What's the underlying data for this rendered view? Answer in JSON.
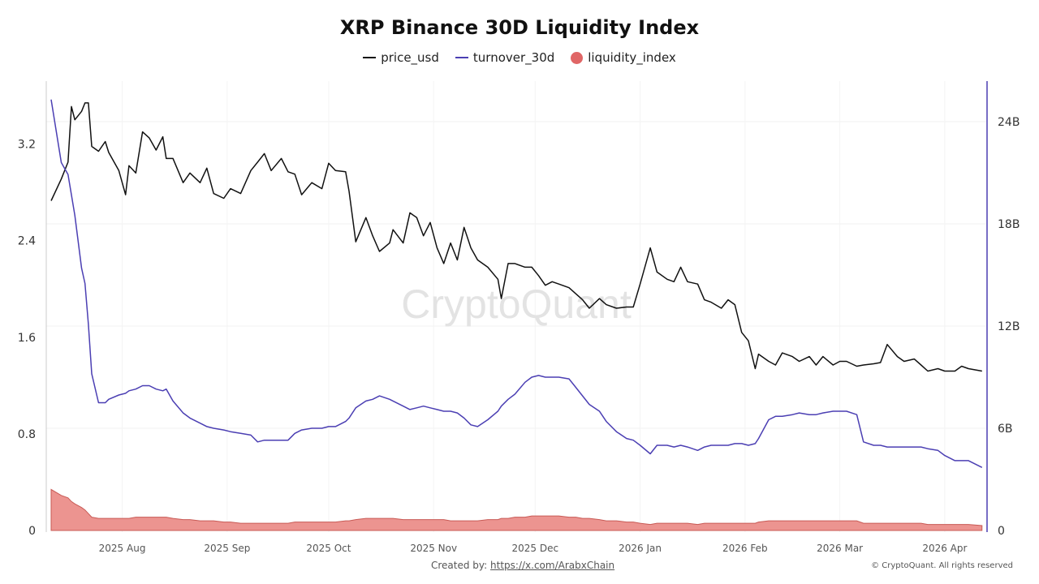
{
  "chart_data": {
    "type": "line",
    "title": "XRP Binance 30D Liquidity Index",
    "legend_position": "top",
    "grid": true,
    "colors": {
      "price_usd": "#111111",
      "turnover_30d": "#4b3fb3",
      "liquidity_index": "#e06666"
    },
    "left_axis": {
      "ticks": [
        "0",
        "0.8",
        "1.6",
        "2.4",
        "3.2"
      ],
      "tick_values": [
        0,
        0.8,
        1.6,
        2.4,
        3.2
      ],
      "ylim": [
        0,
        3.72
      ]
    },
    "right_axis": {
      "ticks": [
        "0",
        "6B",
        "12B",
        "18B",
        "24B"
      ],
      "tick_values": [
        0,
        6,
        12,
        18,
        24
      ],
      "ylim": [
        0,
        26.5
      ],
      "unit": "billions"
    },
    "x_ticks": [
      {
        "label": "2025 Aug",
        "date": "2025-08-01"
      },
      {
        "label": "2025 Sep",
        "date": "2025-09-01"
      },
      {
        "label": "2025 Oct",
        "date": "2025-10-01"
      },
      {
        "label": "2025 Nov",
        "date": "2025-11-01"
      },
      {
        "label": "2025 Dec",
        "date": "2025-12-01"
      },
      {
        "label": "2026 Jan",
        "date": "2026-01-01"
      },
      {
        "label": "2026 Feb",
        "date": "2026-02-01"
      },
      {
        "label": "2026 Mar",
        "date": "2026-03-01"
      },
      {
        "label": "2026 Apr",
        "date": "2026-04-01"
      }
    ],
    "dates": [
      "2025-07-11",
      "2025-07-14",
      "2025-07-16",
      "2025-07-17",
      "2025-07-18",
      "2025-07-20",
      "2025-07-21",
      "2025-07-22",
      "2025-07-23",
      "2025-07-25",
      "2025-07-27",
      "2025-07-28",
      "2025-07-31",
      "2025-08-02",
      "2025-08-03",
      "2025-08-05",
      "2025-08-07",
      "2025-08-09",
      "2025-08-11",
      "2025-08-13",
      "2025-08-14",
      "2025-08-16",
      "2025-08-19",
      "2025-08-21",
      "2025-08-24",
      "2025-08-26",
      "2025-08-28",
      "2025-08-31",
      "2025-09-02",
      "2025-09-05",
      "2025-09-08",
      "2025-09-10",
      "2025-09-12",
      "2025-09-14",
      "2025-09-17",
      "2025-09-19",
      "2025-09-21",
      "2025-09-23",
      "2025-09-26",
      "2025-09-29",
      "2025-10-01",
      "2025-10-03",
      "2025-10-06",
      "2025-10-07",
      "2025-10-09",
      "2025-10-12",
      "2025-10-14",
      "2025-10-16",
      "2025-10-19",
      "2025-10-20",
      "2025-10-23",
      "2025-10-25",
      "2025-10-27",
      "2025-10-29",
      "2025-10-31",
      "2025-11-02",
      "2025-11-04",
      "2025-11-06",
      "2025-11-08",
      "2025-11-10",
      "2025-11-12",
      "2025-11-14",
      "2025-11-17",
      "2025-11-20",
      "2025-11-21",
      "2025-11-23",
      "2025-11-25",
      "2025-11-28",
      "2025-11-30",
      "2025-12-02",
      "2025-12-04",
      "2025-12-06",
      "2025-12-08",
      "2025-12-11",
      "2025-12-13",
      "2025-12-15",
      "2025-12-17",
      "2025-12-20",
      "2025-12-22",
      "2025-12-25",
      "2025-12-28",
      "2025-12-30",
      "2026-01-01",
      "2026-01-04",
      "2026-01-06",
      "2026-01-09",
      "2026-01-11",
      "2026-01-13",
      "2026-01-15",
      "2026-01-18",
      "2026-01-20",
      "2026-01-22",
      "2026-01-25",
      "2026-01-27",
      "2026-01-29",
      "2026-01-31",
      "2026-02-02",
      "2026-02-04",
      "2026-02-05",
      "2026-02-08",
      "2026-02-10",
      "2026-02-12",
      "2026-02-15",
      "2026-02-17",
      "2026-02-20",
      "2026-02-22",
      "2026-02-24",
      "2026-02-27",
      "2026-03-01",
      "2026-03-03",
      "2026-03-06",
      "2026-03-08",
      "2026-03-11",
      "2026-03-13",
      "2026-03-15",
      "2026-03-18",
      "2026-03-20",
      "2026-03-23",
      "2026-03-25",
      "2026-03-27",
      "2026-03-30",
      "2026-04-01",
      "2026-04-04",
      "2026-04-06",
      "2026-04-08",
      "2026-04-12"
    ],
    "series": [
      {
        "name": "price_usd",
        "axis": "left",
        "kind": "line",
        "values": [
          2.73,
          2.91,
          3.05,
          3.51,
          3.4,
          3.47,
          3.54,
          3.54,
          3.18,
          3.14,
          3.22,
          3.13,
          2.98,
          2.78,
          3.02,
          2.96,
          3.3,
          3.25,
          3.15,
          3.26,
          3.08,
          3.08,
          2.88,
          2.96,
          2.88,
          3.0,
          2.79,
          2.75,
          2.83,
          2.79,
          2.98,
          3.05,
          3.12,
          2.98,
          3.08,
          2.97,
          2.95,
          2.78,
          2.88,
          2.83,
          3.04,
          2.98,
          2.97,
          2.81,
          2.39,
          2.59,
          2.44,
          2.31,
          2.38,
          2.49,
          2.38,
          2.63,
          2.59,
          2.44,
          2.55,
          2.34,
          2.21,
          2.38,
          2.24,
          2.51,
          2.34,
          2.24,
          2.18,
          2.08,
          1.92,
          2.21,
          2.21,
          2.18,
          2.18,
          2.11,
          2.03,
          2.06,
          2.04,
          2.01,
          1.96,
          1.91,
          1.84,
          1.92,
          1.87,
          1.84,
          1.85,
          1.85,
          2.04,
          2.34,
          2.14,
          2.08,
          2.06,
          2.18,
          2.06,
          2.04,
          1.91,
          1.89,
          1.84,
          1.91,
          1.87,
          1.64,
          1.57,
          1.34,
          1.46,
          1.4,
          1.37,
          1.47,
          1.44,
          1.4,
          1.44,
          1.37,
          1.44,
          1.37,
          1.4,
          1.4,
          1.36,
          1.37,
          1.38,
          1.39,
          1.54,
          1.44,
          1.4,
          1.42,
          1.37,
          1.32,
          1.34,
          1.32,
          1.32,
          1.36,
          1.34,
          1.32
        ]
      },
      {
        "name": "turnover_30d",
        "axis": "right",
        "kind": "line",
        "values": [
          25.3,
          21.6,
          20.9,
          19.7,
          18.5,
          15.4,
          14.5,
          12.1,
          9.2,
          7.5,
          7.5,
          7.7,
          7.95,
          8.05,
          8.2,
          8.3,
          8.5,
          8.5,
          8.3,
          8.2,
          8.3,
          7.6,
          6.9,
          6.6,
          6.3,
          6.1,
          6.0,
          5.9,
          5.8,
          5.7,
          5.6,
          5.2,
          5.3,
          5.3,
          5.3,
          5.3,
          5.7,
          5.9,
          6.0,
          6.0,
          6.1,
          6.1,
          6.4,
          6.6,
          7.2,
          7.6,
          7.7,
          7.9,
          7.7,
          7.6,
          7.3,
          7.1,
          7.2,
          7.3,
          7.2,
          7.1,
          7.0,
          7.0,
          6.9,
          6.6,
          6.2,
          6.1,
          6.5,
          7.0,
          7.3,
          7.7,
          8.0,
          8.7,
          9.0,
          9.1,
          9.0,
          9.0,
          9.0,
          8.9,
          8.4,
          7.9,
          7.4,
          7.0,
          6.4,
          5.8,
          5.4,
          5.3,
          5.0,
          4.5,
          5.0,
          5.0,
          4.9,
          5.0,
          4.9,
          4.7,
          4.9,
          5.0,
          5.0,
          5.0,
          5.1,
          5.1,
          5.0,
          5.1,
          5.4,
          6.5,
          6.7,
          6.7,
          6.8,
          6.9,
          6.8,
          6.8,
          6.9,
          7.0,
          7.0,
          7.0,
          6.8,
          5.2,
          5.0,
          5.0,
          4.9,
          4.9,
          4.9,
          4.9,
          4.9,
          4.8,
          4.7,
          4.4,
          4.1,
          4.1,
          4.1,
          3.7
        ]
      },
      {
        "name": "liquidity_index",
        "axis": "left",
        "kind": "area",
        "values": [
          0.34,
          0.29,
          0.27,
          0.24,
          0.22,
          0.19,
          0.17,
          0.14,
          0.11,
          0.1,
          0.1,
          0.1,
          0.1,
          0.1,
          0.1,
          0.11,
          0.11,
          0.11,
          0.11,
          0.11,
          0.11,
          0.1,
          0.09,
          0.09,
          0.08,
          0.08,
          0.08,
          0.07,
          0.07,
          0.06,
          0.06,
          0.06,
          0.06,
          0.06,
          0.06,
          0.06,
          0.07,
          0.07,
          0.07,
          0.07,
          0.07,
          0.07,
          0.08,
          0.08,
          0.09,
          0.1,
          0.1,
          0.1,
          0.1,
          0.1,
          0.09,
          0.09,
          0.09,
          0.09,
          0.09,
          0.09,
          0.09,
          0.08,
          0.08,
          0.08,
          0.08,
          0.08,
          0.09,
          0.09,
          0.1,
          0.1,
          0.11,
          0.11,
          0.12,
          0.12,
          0.12,
          0.12,
          0.12,
          0.11,
          0.11,
          0.1,
          0.1,
          0.09,
          0.08,
          0.08,
          0.07,
          0.07,
          0.06,
          0.05,
          0.06,
          0.06,
          0.06,
          0.06,
          0.06,
          0.05,
          0.06,
          0.06,
          0.06,
          0.06,
          0.06,
          0.06,
          0.06,
          0.06,
          0.07,
          0.08,
          0.08,
          0.08,
          0.08,
          0.08,
          0.08,
          0.08,
          0.08,
          0.08,
          0.08,
          0.08,
          0.08,
          0.06,
          0.06,
          0.06,
          0.06,
          0.06,
          0.06,
          0.06,
          0.06,
          0.05,
          0.05,
          0.05,
          0.05,
          0.05,
          0.05,
          0.04
        ]
      }
    ]
  },
  "watermark": "CryptoQuant",
  "footer": {
    "created_by_label": "Created by:",
    "created_by_link": "https://x.com/ArabxChain",
    "copyright": "© CryptoQuant. All rights reserved"
  }
}
